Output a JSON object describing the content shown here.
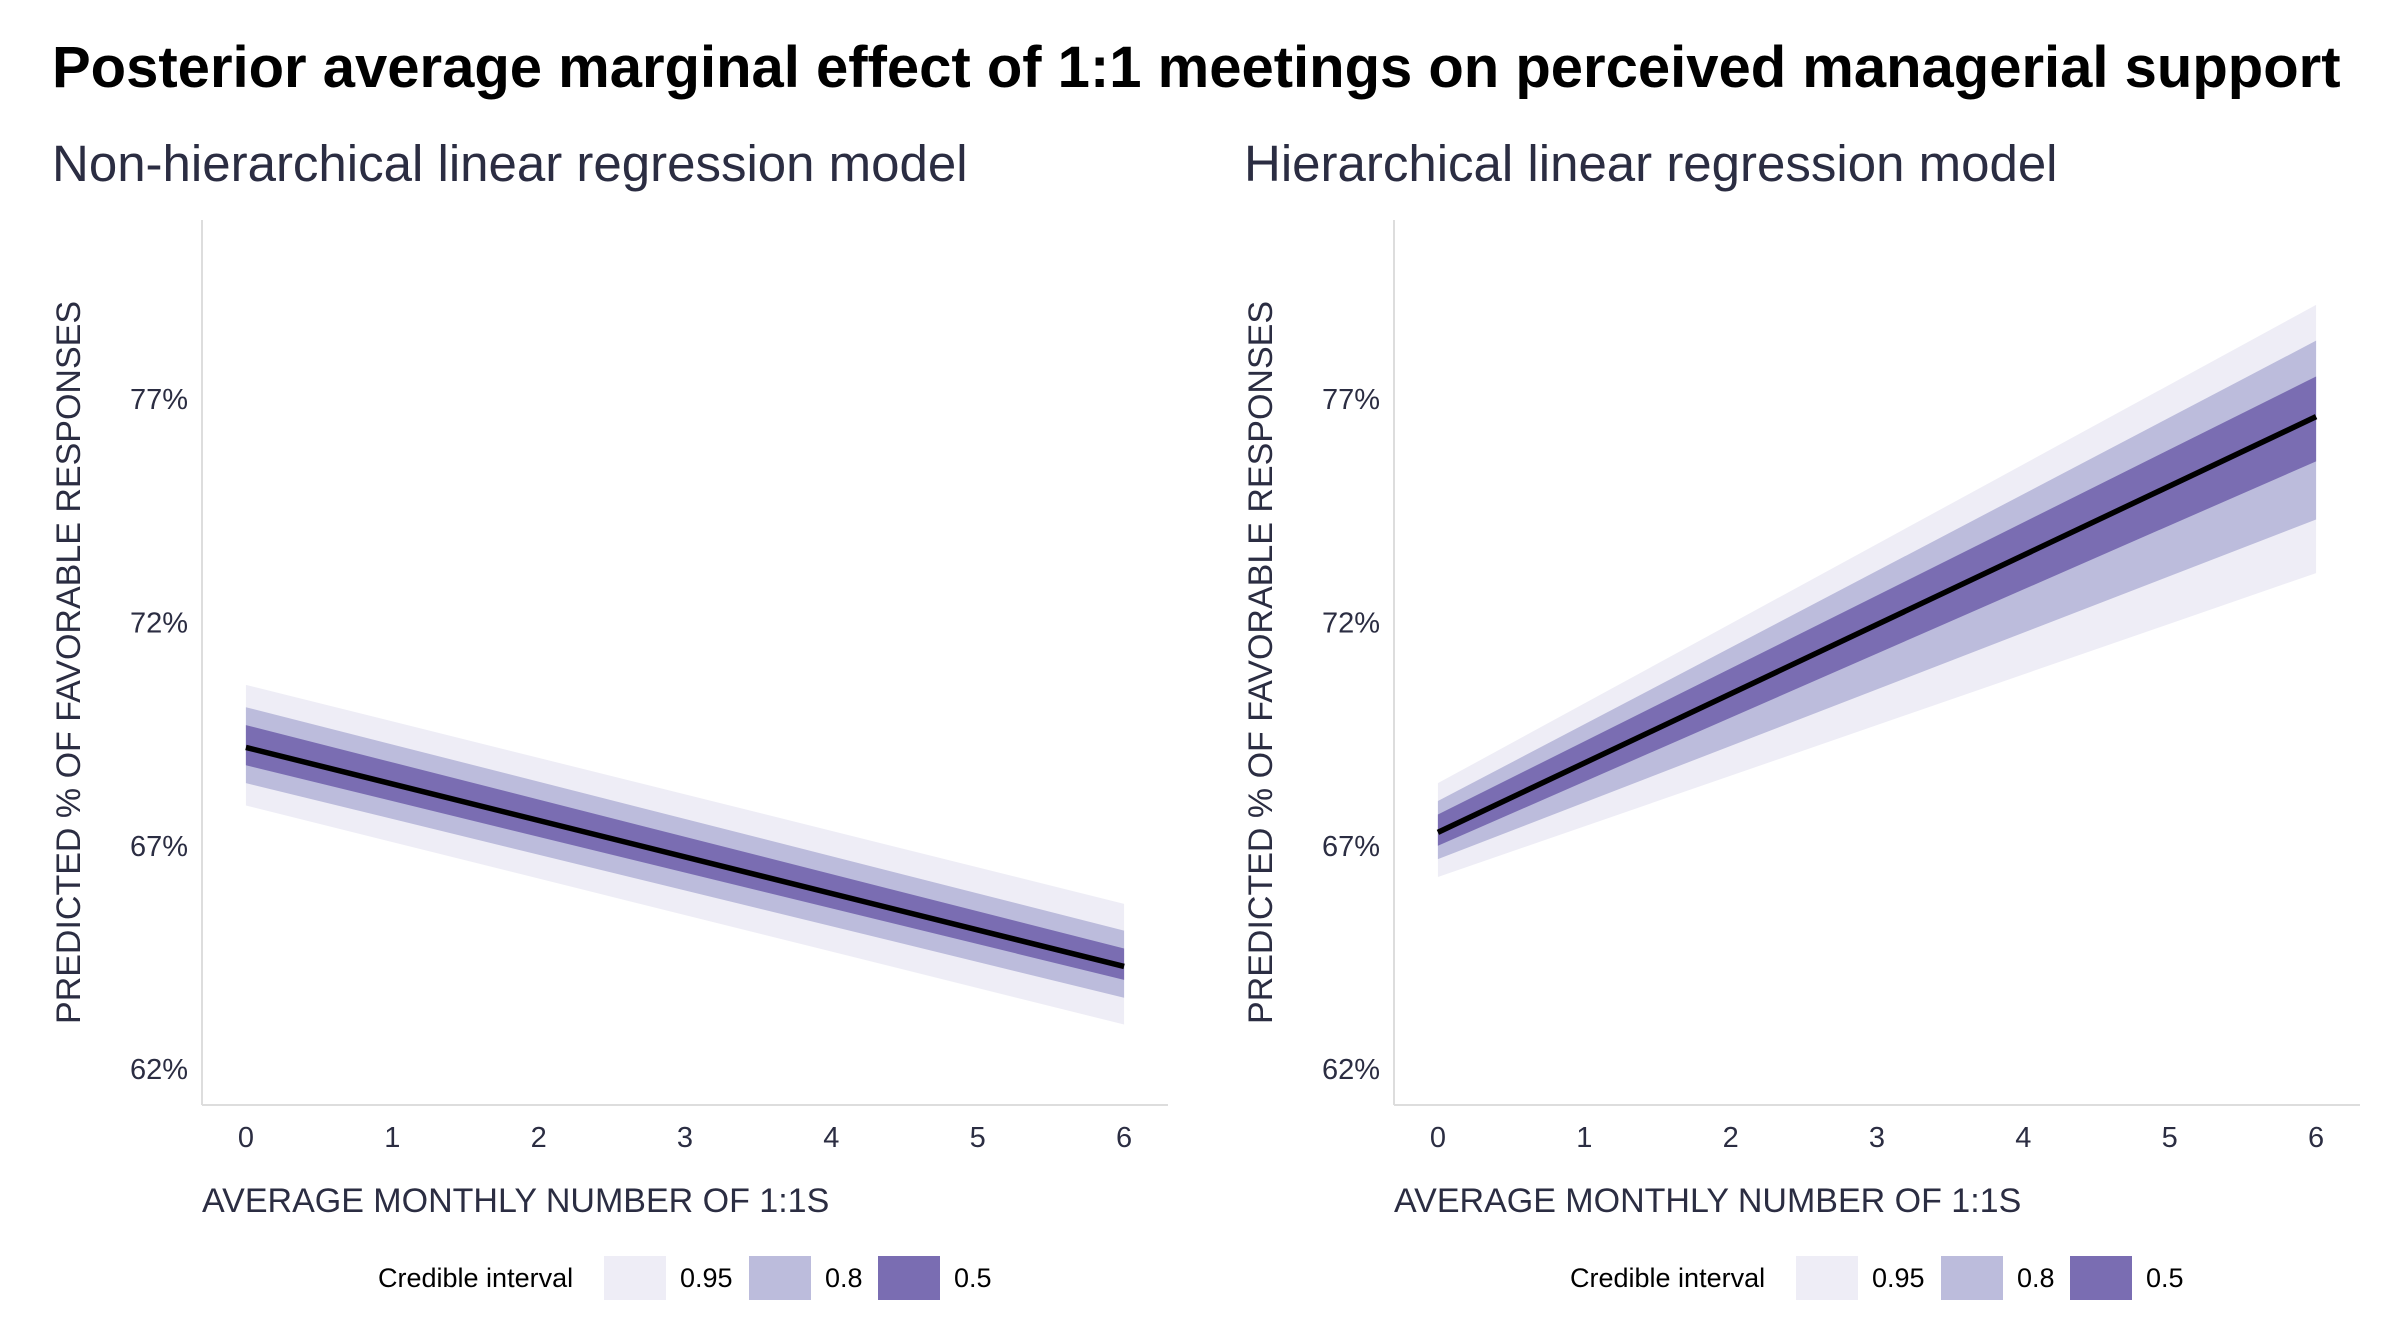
{
  "title": "Posterior average marginal effect of 1:1 meetings on perceived managerial support",
  "colors": {
    "ci_95": "#eeedf6",
    "ci_80": "#bcbcdc",
    "ci_50": "#7a6db2",
    "line": "#000000",
    "axis": "#dddddd",
    "text": "#2b2d42"
  },
  "chart_data": [
    {
      "type": "area",
      "title": "Non-hierarchical linear regression model",
      "xlabel": "AVERAGE MONTHLY NUMBER OF 1:1S",
      "ylabel": "PREDICTED % OF FAVORABLE RESPONSES",
      "x_ticks": [
        "0",
        "1",
        "2",
        "3",
        "4",
        "5",
        "6"
      ],
      "y_ticks": [
        "62%",
        "67%",
        "72%",
        "77%"
      ],
      "xlim": [
        -0.3,
        6.3
      ],
      "ylim": [
        61.2,
        81.0
      ],
      "grid": false,
      "legend": {
        "title": "Credible interval",
        "entries": [
          "0.95",
          "0.8",
          "0.5"
        ],
        "position": "bottom"
      },
      "x": [
        0,
        6
      ],
      "mean": [
        69.2,
        64.3
      ],
      "bands": [
        {
          "name": "0.95",
          "lower": [
            67.9,
            63.0
          ],
          "upper": [
            70.6,
            65.7
          ]
        },
        {
          "name": "0.8",
          "lower": [
            68.4,
            63.6
          ],
          "upper": [
            70.1,
            65.1
          ]
        },
        {
          "name": "0.5",
          "lower": [
            68.8,
            64.0
          ],
          "upper": [
            69.7,
            64.7
          ]
        }
      ]
    },
    {
      "type": "area",
      "title": "Hierarchical linear regression model",
      "xlabel": "AVERAGE MONTHLY NUMBER OF 1:1S",
      "ylabel": "PREDICTED % OF FAVORABLE RESPONSES",
      "x_ticks": [
        "0",
        "1",
        "2",
        "3",
        "4",
        "5",
        "6"
      ],
      "y_ticks": [
        "62%",
        "67%",
        "72%",
        "77%"
      ],
      "xlim": [
        -0.3,
        6.3
      ],
      "ylim": [
        61.2,
        81.0
      ],
      "grid": false,
      "legend": {
        "title": "Credible interval",
        "entries": [
          "0.95",
          "0.8",
          "0.5"
        ],
        "position": "bottom"
      },
      "x": [
        0,
        6
      ],
      "mean": [
        67.3,
        76.6
      ],
      "bands": [
        {
          "name": "0.95",
          "lower": [
            66.3,
            73.1
          ],
          "upper": [
            68.4,
            79.1
          ]
        },
        {
          "name": "0.8",
          "lower": [
            66.7,
            74.3
          ],
          "upper": [
            68.0,
            78.3
          ]
        },
        {
          "name": "0.5",
          "lower": [
            67.0,
            75.6
          ],
          "upper": [
            67.7,
            77.5
          ]
        }
      ]
    }
  ]
}
